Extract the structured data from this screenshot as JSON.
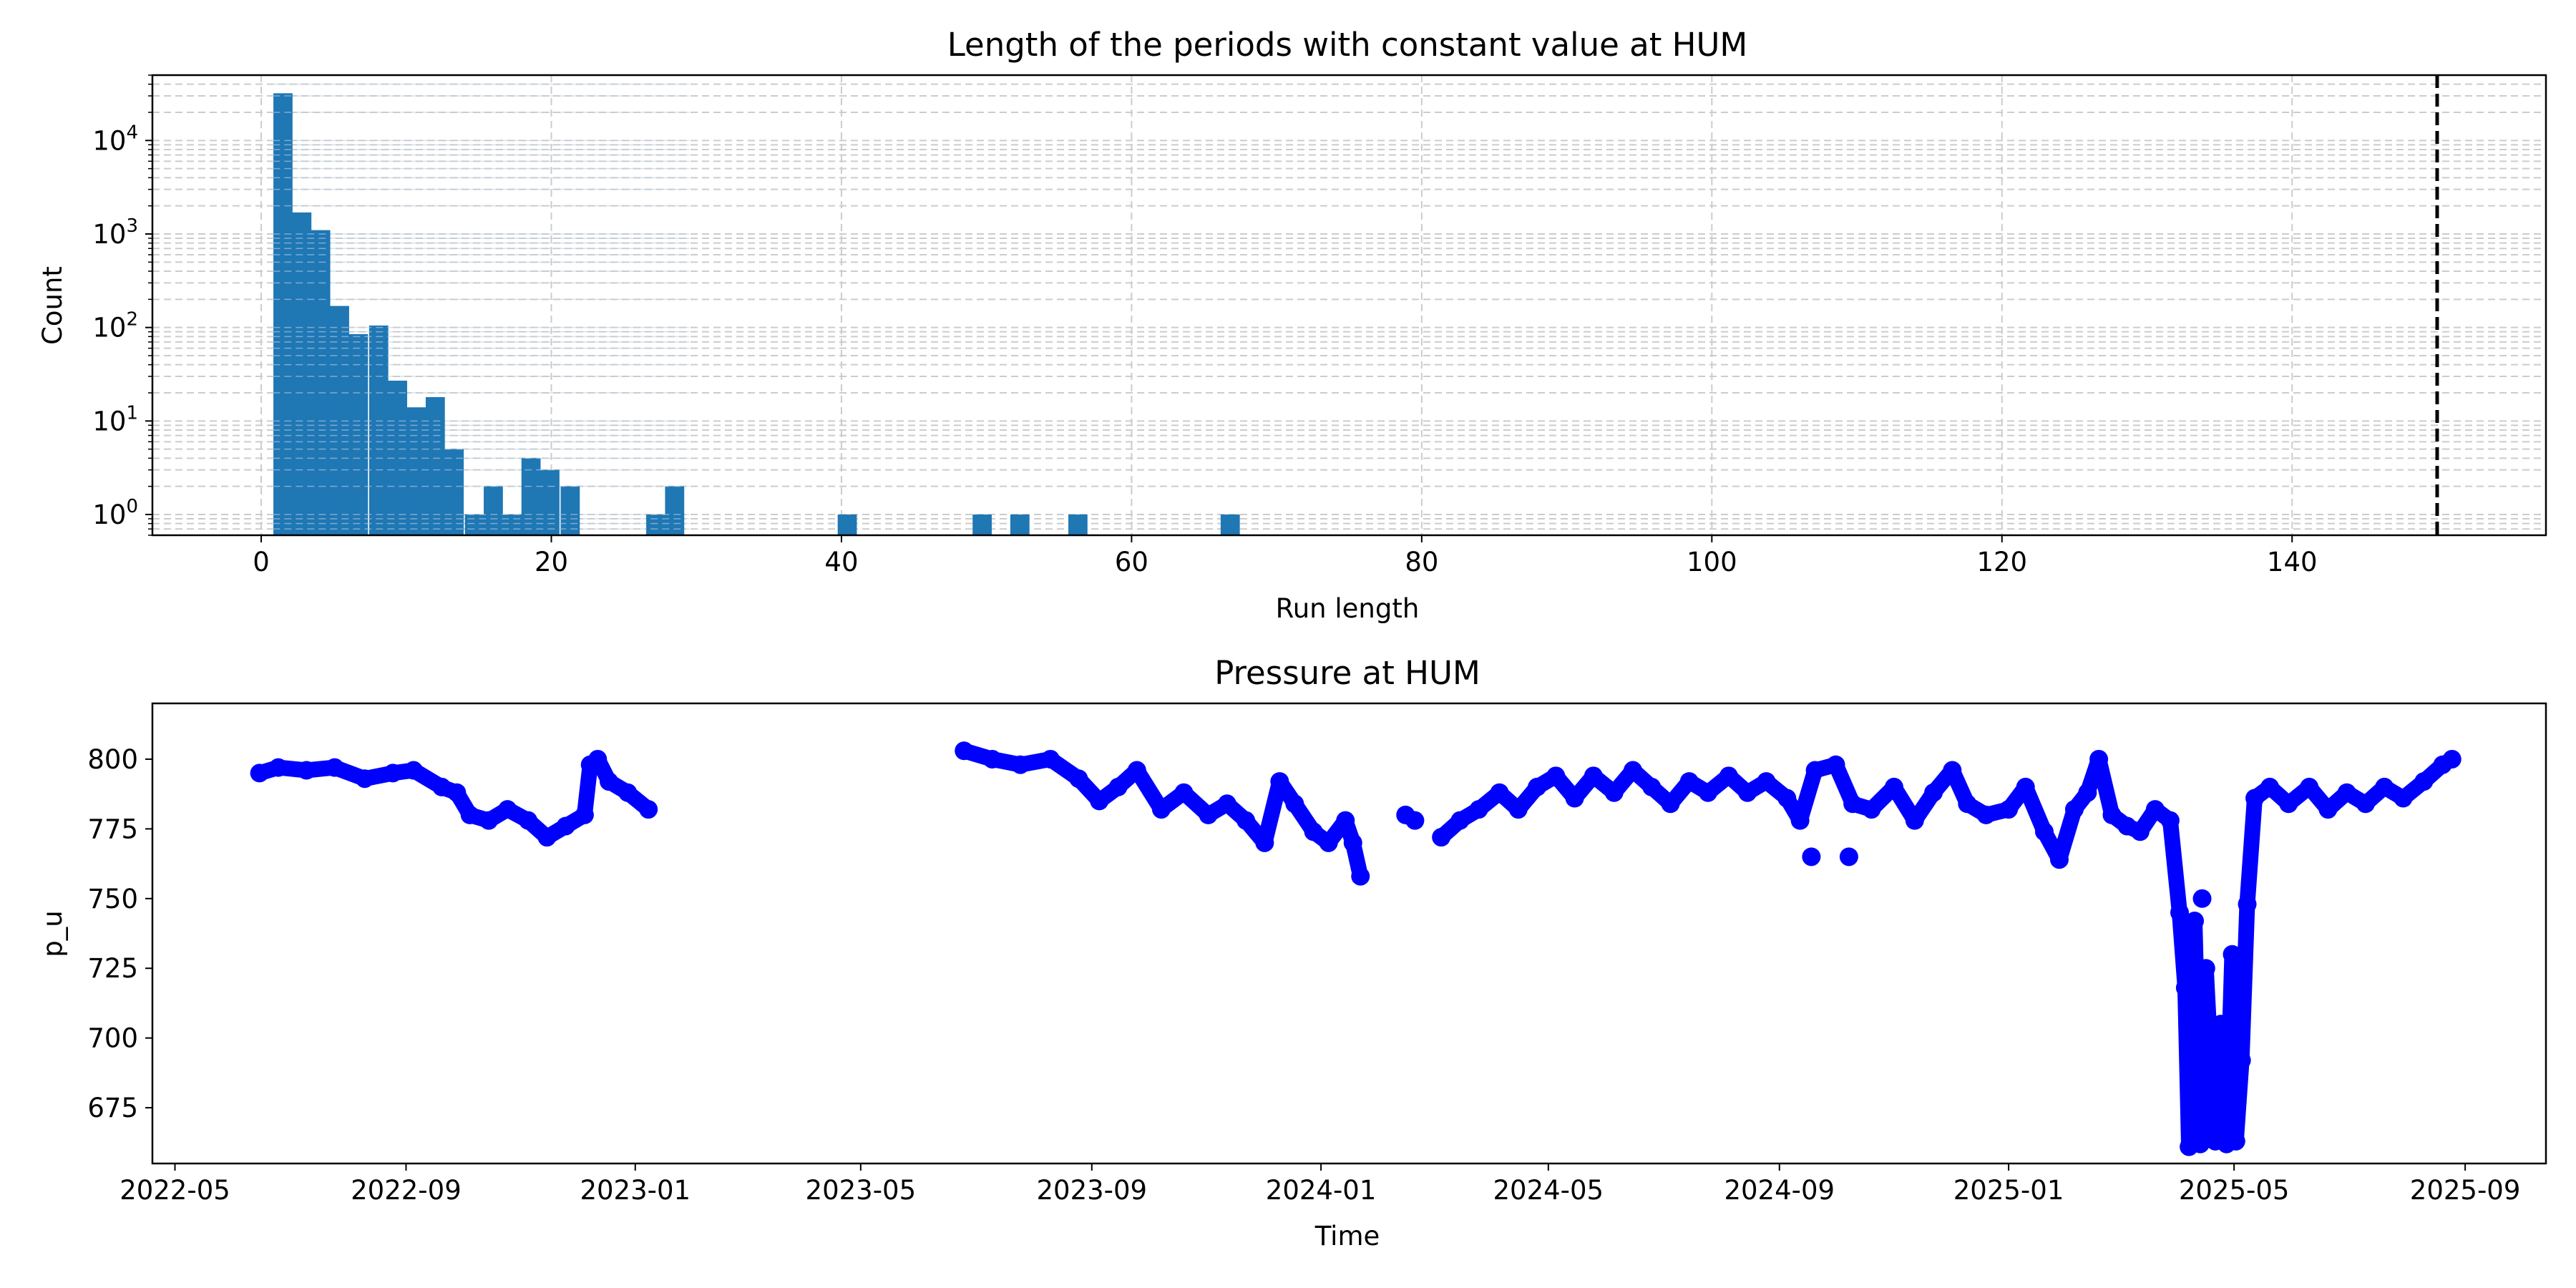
{
  "chart_data": [
    {
      "type": "bar",
      "title": "Length of the periods with constant value at HUM",
      "xlabel": "Run length",
      "ylabel": "Count",
      "yscale": "log",
      "xlim": [
        -7.5,
        157.5
      ],
      "ylim": [
        0.6,
        50000
      ],
      "x_ticks": [
        "0",
        "20",
        "40",
        "60",
        "80",
        "100",
        "120",
        "140"
      ],
      "y_ticks": [
        {
          "base": "10",
          "exp": "0"
        },
        {
          "base": "10",
          "exp": "1"
        },
        {
          "base": "10",
          "exp": "2"
        },
        {
          "base": "10",
          "exp": "3"
        },
        {
          "base": "10",
          "exp": "4"
        }
      ],
      "grid": true,
      "bin_width": 1.32,
      "bars": [
        {
          "x": 1.5,
          "count": 32000
        },
        {
          "x": 2.8,
          "count": 1700
        },
        {
          "x": 4.1,
          "count": 1100
        },
        {
          "x": 5.4,
          "count": 170
        },
        {
          "x": 6.7,
          "count": 85
        },
        {
          "x": 8.1,
          "count": 105
        },
        {
          "x": 9.4,
          "count": 27
        },
        {
          "x": 10.7,
          "count": 14
        },
        {
          "x": 12.0,
          "count": 18
        },
        {
          "x": 13.3,
          "count": 5
        },
        {
          "x": 14.7,
          "count": 1
        },
        {
          "x": 16.0,
          "count": 2
        },
        {
          "x": 17.3,
          "count": 1
        },
        {
          "x": 18.6,
          "count": 4
        },
        {
          "x": 19.9,
          "count": 3
        },
        {
          "x": 21.3,
          "count": 2
        },
        {
          "x": 27.2,
          "count": 1
        },
        {
          "x": 28.5,
          "count": 2
        },
        {
          "x": 40.4,
          "count": 1
        },
        {
          "x": 49.7,
          "count": 1
        },
        {
          "x": 52.3,
          "count": 1
        },
        {
          "x": 56.3,
          "count": 1
        },
        {
          "x": 66.8,
          "count": 1
        }
      ],
      "threshold_line": {
        "x": 150,
        "style": "dashed",
        "color": "#000000"
      },
      "colors": {
        "bars": "#1f77b4",
        "grid": "#cccccc"
      }
    },
    {
      "type": "line",
      "title": "Pressure at HUM",
      "xlabel": "Time",
      "ylabel": "p_u",
      "xlim": [
        "2022-04-19",
        "2025-10-14"
      ],
      "ylim": [
        655,
        820
      ],
      "x_ticks": [
        "2022-05",
        "2022-09",
        "2023-01",
        "2023-05",
        "2023-09",
        "2024-01",
        "2024-05",
        "2024-09",
        "2025-01",
        "2025-05",
        "2025-09"
      ],
      "y_ticks": [
        "675",
        "700",
        "725",
        "750",
        "775",
        "800"
      ],
      "marker": "circle",
      "color": "#0000ff",
      "series": [
        {
          "segments": [
            [
              [
                "2022-06-15",
                795
              ],
              [
                "2022-06-25",
                797
              ],
              [
                "2022-07-10",
                796
              ],
              [
                "2022-07-25",
                797
              ],
              [
                "2022-08-10",
                793
              ],
              [
                "2022-08-25",
                795
              ],
              [
                "2022-09-05",
                796
              ],
              [
                "2022-09-20",
                790
              ],
              [
                "2022-09-28",
                788
              ],
              [
                "2022-10-05",
                780
              ],
              [
                "2022-10-15",
                778
              ],
              [
                "2022-10-25",
                782
              ],
              [
                "2022-11-05",
                778
              ],
              [
                "2022-11-15",
                772
              ],
              [
                "2022-11-25",
                776
              ],
              [
                "2022-12-05",
                780
              ],
              [
                "2022-12-08",
                798
              ],
              [
                "2022-12-12",
                800
              ],
              [
                "2022-12-18",
                792
              ],
              [
                "2022-12-28",
                788
              ],
              [
                "2023-01-08",
                782
              ]
            ],
            [
              [
                "2023-06-25",
                803
              ],
              [
                "2023-07-10",
                800
              ],
              [
                "2023-07-25",
                798
              ],
              [
                "2023-08-10",
                800
              ],
              [
                "2023-08-25",
                793
              ],
              [
                "2023-09-05",
                785
              ],
              [
                "2023-09-15",
                790
              ],
              [
                "2023-09-25",
                796
              ],
              [
                "2023-10-08",
                782
              ],
              [
                "2023-10-20",
                788
              ],
              [
                "2023-11-02",
                780
              ],
              [
                "2023-11-12",
                784
              ],
              [
                "2023-11-22",
                778
              ],
              [
                "2023-12-02",
                770
              ],
              [
                "2023-12-10",
                792
              ],
              [
                "2023-12-18",
                784
              ],
              [
                "2023-12-28",
                774
              ],
              [
                "2024-01-05",
                770
              ],
              [
                "2024-01-14",
                778
              ],
              [
                "2024-01-18",
                770
              ],
              [
                "2024-01-22",
                758
              ]
            ],
            [
              [
                "2024-02-15",
                780
              ],
              [
                "2024-02-20",
                778
              ]
            ],
            [
              [
                "2024-03-05",
                772
              ],
              [
                "2024-03-15",
                778
              ],
              [
                "2024-03-25",
                782
              ],
              [
                "2024-04-05",
                788
              ],
              [
                "2024-04-15",
                782
              ],
              [
                "2024-04-25",
                790
              ],
              [
                "2024-05-05",
                794
              ],
              [
                "2024-05-15",
                786
              ],
              [
                "2024-05-25",
                794
              ],
              [
                "2024-06-05",
                788
              ],
              [
                "2024-06-15",
                796
              ],
              [
                "2024-06-25",
                790
              ],
              [
                "2024-07-05",
                784
              ],
              [
                "2024-07-15",
                792
              ],
              [
                "2024-07-25",
                788
              ],
              [
                "2024-08-05",
                794
              ],
              [
                "2024-08-15",
                788
              ],
              [
                "2024-08-25",
                792
              ],
              [
                "2024-09-05",
                786
              ],
              [
                "2024-09-12",
                778
              ],
              [
                "2024-09-20",
                796
              ],
              [
                "2024-10-01",
                798
              ],
              [
                "2024-10-10",
                784
              ],
              [
                "2024-10-20",
                782
              ],
              [
                "2024-11-01",
                790
              ],
              [
                "2024-11-12",
                778
              ],
              [
                "2024-11-22",
                788
              ],
              [
                "2024-12-02",
                796
              ],
              [
                "2024-12-10",
                784
              ],
              [
                "2024-12-20",
                780
              ],
              [
                "2025-01-01",
                782
              ],
              [
                "2025-01-10",
                790
              ],
              [
                "2025-01-20",
                774
              ],
              [
                "2025-01-28",
                764
              ],
              [
                "2025-02-05",
                782
              ],
              [
                "2025-02-12",
                788
              ],
              [
                "2025-02-18",
                800
              ],
              [
                "2025-02-25",
                780
              ],
              [
                "2025-03-05",
                776
              ],
              [
                "2025-03-12",
                774
              ],
              [
                "2025-03-20",
                782
              ],
              [
                "2025-03-28",
                778
              ],
              [
                "2025-04-02",
                745
              ],
              [
                "2025-04-05",
                718
              ],
              [
                "2025-04-07",
                661
              ],
              [
                "2025-04-10",
                742
              ],
              [
                "2025-04-13",
                662
              ],
              [
                "2025-04-16",
                725
              ],
              [
                "2025-04-19",
                686
              ],
              [
                "2025-04-21",
                663
              ],
              [
                "2025-04-24",
                705
              ],
              [
                "2025-04-27",
                662
              ],
              [
                "2025-04-30",
                730
              ],
              [
                "2025-05-02",
                663
              ],
              [
                "2025-05-05",
                692
              ],
              [
                "2025-05-08",
                748
              ],
              [
                "2025-05-12",
                786
              ],
              [
                "2025-05-20",
                790
              ],
              [
                "2025-05-30",
                784
              ],
              [
                "2025-06-10",
                790
              ],
              [
                "2025-06-20",
                782
              ],
              [
                "2025-06-30",
                788
              ],
              [
                "2025-07-10",
                784
              ],
              [
                "2025-07-20",
                790
              ],
              [
                "2025-07-30",
                786
              ],
              [
                "2025-08-10",
                792
              ],
              [
                "2025-08-20",
                798
              ],
              [
                "2025-08-25",
                800
              ]
            ]
          ]
        }
      ],
      "extra_points": [
        [
          "2024-09-18",
          765
        ],
        [
          "2024-10-08",
          765
        ],
        [
          "2025-04-14",
          750
        ],
        [
          "2025-04-22",
          693
        ],
        [
          "2025-05-04",
          694
        ]
      ]
    }
  ]
}
